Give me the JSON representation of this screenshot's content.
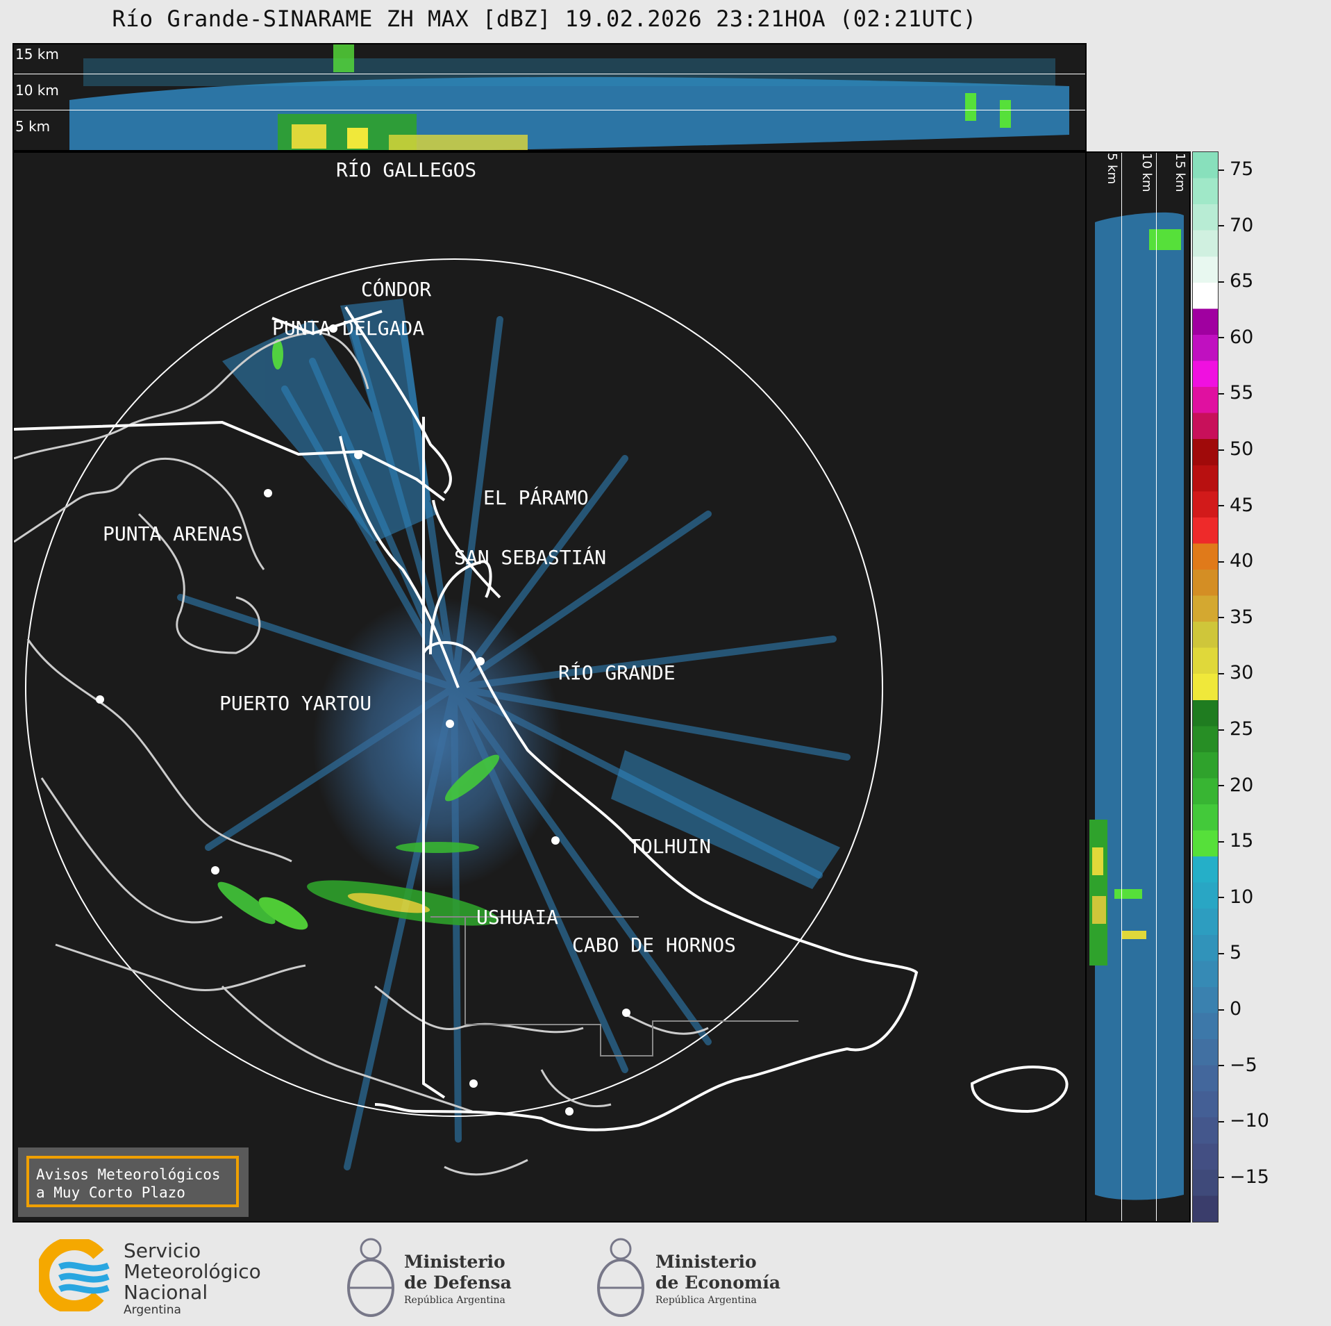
{
  "title": "Río Grande-SINARAME ZH MAX [dBZ] 19.02.2026 23:21HOA (02:21UTC)",
  "top_panel": {
    "labels": [
      "15 km",
      "10 km",
      "5 km"
    ]
  },
  "side_panel": {
    "labels": [
      "5 km",
      "10 km",
      "15 km"
    ]
  },
  "cities": [
    {
      "id": "rio-gallegos",
      "name": "RÍO GALLEGOS"
    },
    {
      "id": "condor",
      "name": "CÓNDOR"
    },
    {
      "id": "punta-delgada",
      "name": "PUNTA DELGADA"
    },
    {
      "id": "el-paramo",
      "name": "EL PÁRAMO"
    },
    {
      "id": "punta-arenas",
      "name": "PUNTA ARENAS"
    },
    {
      "id": "san-sebastian",
      "name": "SAN SEBASTIÁN"
    },
    {
      "id": "rio-grande",
      "name": "RÍO GRANDE"
    },
    {
      "id": "puerto-yartou",
      "name": "PUERTO YARTOU"
    },
    {
      "id": "tolhuin",
      "name": "TOLHUIN"
    },
    {
      "id": "ushuaia",
      "name": "USHUAIA"
    },
    {
      "id": "cabo-de-hornos",
      "name": "CABO DE HORNOS"
    }
  ],
  "colorbar": {
    "unit": "dBZ",
    "ticks": [
      "75",
      "70",
      "65",
      "60",
      "55",
      "50",
      "45",
      "40",
      "35",
      "30",
      "25",
      "20",
      "15",
      "10",
      "5",
      "0",
      "−5",
      "−10",
      "−15"
    ],
    "colors": [
      "#3a3d6b",
      "#3f4a7a",
      "#434f83",
      "#44578c",
      "#445f95",
      "#43679c",
      "#4170a2",
      "#3d78a9",
      "#3a81af",
      "#368ab5",
      "#3193ba",
      "#2d9dc0",
      "#29a6c4",
      "#25afc8",
      "#56e03a",
      "#43c93a",
      "#38b533",
      "#2fa22c",
      "#278e25",
      "#1f7c20",
      "#f0e83a",
      "#e0d83a",
      "#cfc63a",
      "#d4a830",
      "#d48e24",
      "#e07a1a",
      "#ee2a2a",
      "#d21a1a",
      "#b81010",
      "#a00a0a",
      "#c8105a",
      "#e010a0",
      "#f010e0",
      "#c010c0",
      "#a000a0",
      "#ffffff",
      "#e8f8f0",
      "#d0f0e0",
      "#b8ecd4",
      "#a0e8c8",
      "#88e0bc"
    ]
  },
  "notice": {
    "line1": "Avisos Meteorológicos",
    "line2": "a Muy Corto Plazo"
  },
  "footer": {
    "smn": {
      "line1": "Servicio",
      "line2": "Meteorológico",
      "line3": "Nacional",
      "line4": "Argentina"
    },
    "defensa": {
      "line1": "Ministerio",
      "line2": "de Defensa",
      "line3": "República Argentina"
    },
    "economia": {
      "line1": "Ministerio",
      "line2": "de Economía",
      "line3": "República Argentina"
    }
  }
}
